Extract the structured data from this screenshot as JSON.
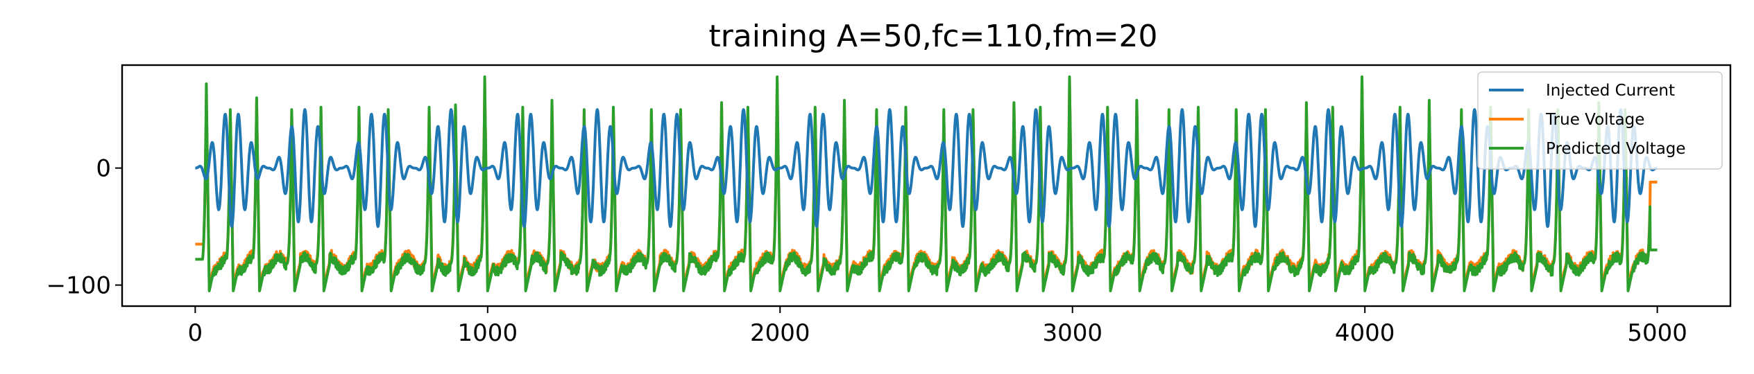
{
  "chart_data": {
    "type": "line",
    "title": "training A=50,fc=110,fm=20",
    "xlabel": "",
    "ylabel": "",
    "xlim": [
      -250,
      5250
    ],
    "ylim": [
      -118,
      88
    ],
    "xticks": [
      0,
      1000,
      2000,
      3000,
      4000,
      5000
    ],
    "xtick_labels": [
      "0",
      "1000",
      "2000",
      "3000",
      "4000",
      "5000"
    ],
    "yticks": [
      0,
      -100
    ],
    "ytick_labels": [
      "0",
      "−100"
    ],
    "grid": false,
    "legend_position": "top-right",
    "series": [
      {
        "name": "Injected Current",
        "color": "#1f77b4",
        "model": "A*(1+sin(2*pi*fm*t))/2*sin(2*pi*fc*t) sampled, t=x/5000s",
        "params": {
          "A": 50,
          "fc": 110,
          "fm": 20,
          "samples": 5001
        }
      },
      {
        "name": "True Voltage",
        "color": "#ff7f0e",
        "spike_x": [
          38,
          120,
          210,
          330,
          430,
          560,
          660,
          800,
          890,
          990,
          1120,
          1220,
          1330,
          1430,
          1560,
          1660,
          1800,
          1890,
          1990,
          2120,
          2220,
          2330,
          2430,
          2560,
          2660,
          2800,
          2890,
          2990,
          3120,
          3220,
          3330,
          3430,
          3560,
          3660,
          3800,
          3890,
          3990,
          4120,
          4220,
          4330,
          4430,
          4560,
          4660,
          4800,
          4890,
          4980
        ],
        "spike_peak": [
          62,
          48,
          58,
          48,
          50,
          50,
          48,
          50,
          52,
          75,
          50,
          55,
          48,
          50,
          48,
          48,
          55,
          50,
          75,
          50,
          55,
          48,
          50,
          48,
          48,
          55,
          50,
          75,
          50,
          55,
          48,
          50,
          48,
          48,
          55,
          50,
          75,
          50,
          55,
          48,
          50,
          48,
          48,
          55,
          48,
          50
        ],
        "rest": -80,
        "trough": -100,
        "start_y": -65,
        "end_y": -12
      },
      {
        "name": "Predicted Voltage",
        "color": "#2ca02c",
        "spike_x": [
          38,
          120,
          210,
          330,
          430,
          560,
          660,
          800,
          890,
          990,
          1120,
          1220,
          1330,
          1430,
          1560,
          1660,
          1800,
          1890,
          1990,
          2120,
          2220,
          2330,
          2430,
          2560,
          2660,
          2800,
          2890,
          2990,
          3120,
          3220,
          3330,
          3430,
          3560,
          3660,
          3800,
          3890,
          3990,
          4120,
          4220,
          4330,
          4430,
          4560,
          4660,
          4800,
          4890,
          4980
        ],
        "spike_peak": [
          72,
          50,
          60,
          50,
          52,
          52,
          50,
          52,
          54,
          78,
          52,
          58,
          50,
          52,
          50,
          50,
          56,
          52,
          78,
          52,
          58,
          50,
          52,
          50,
          50,
          56,
          52,
          78,
          52,
          58,
          50,
          52,
          50,
          50,
          56,
          52,
          78,
          52,
          58,
          50,
          52,
          50,
          50,
          56,
          50,
          48
        ],
        "rest": -82,
        "trough": -105,
        "start_y": -78,
        "end_y": -70
      }
    ]
  }
}
